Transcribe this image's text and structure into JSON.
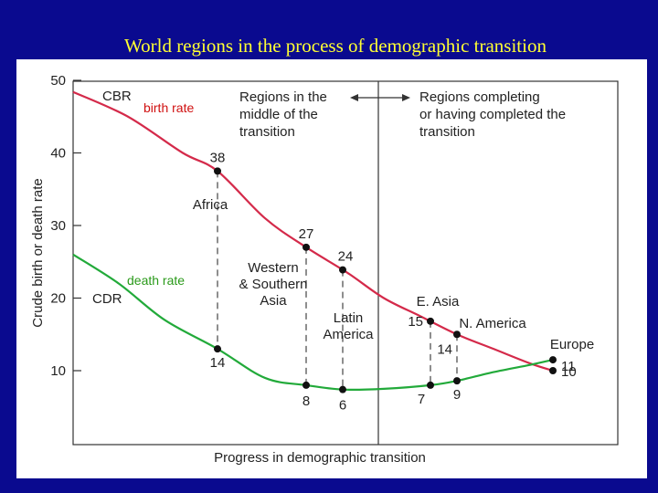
{
  "title": "World regions in the process of demographic transition",
  "chart_data": {
    "type": "line",
    "xlabel": "Progress in demographic transition",
    "ylabel": "Crude birth or death rate",
    "ylim": [
      0,
      50
    ],
    "yticks": [
      10,
      20,
      30,
      40,
      50
    ],
    "grid": false,
    "series": [
      {
        "name": "CBR",
        "color": "#d42a4a",
        "points": [
          [
            0,
            48.4
          ],
          [
            60,
            45
          ],
          [
            120,
            40
          ],
          [
            158,
            37.5
          ],
          [
            210,
            31
          ],
          [
            255,
            27
          ],
          [
            300,
            23.5
          ],
          [
            340,
            20
          ],
          [
            380,
            17.5
          ],
          [
            420,
            15
          ],
          [
            460,
            13
          ],
          [
            500,
            11
          ],
          [
            525,
            10
          ]
        ]
      },
      {
        "name": "CDR",
        "color": "#22aa3a",
        "points": [
          [
            0,
            26
          ],
          [
            50,
            22
          ],
          [
            100,
            17
          ],
          [
            158,
            13
          ],
          [
            210,
            9
          ],
          [
            255,
            8
          ],
          [
            295,
            7.4
          ],
          [
            340,
            7.5
          ],
          [
            391,
            8
          ],
          [
            420,
            8.6
          ],
          [
            460,
            9.8
          ],
          [
            500,
            10.8
          ],
          [
            525,
            11.5
          ]
        ]
      }
    ],
    "overlay_labels": {
      "birth": "birth rate",
      "death": "death rate"
    },
    "regions": [
      {
        "name": "Africa",
        "x": 158,
        "birth": 38,
        "death": 14
      },
      {
        "name": "Western & Southern Asia",
        "x": 255,
        "birth": 27,
        "death": 8
      },
      {
        "name": "Latin America",
        "x": 295,
        "birth": 24,
        "death": 6
      },
      {
        "name": "E. Asia",
        "x": 391,
        "birth": 15,
        "death": 7
      },
      {
        "name": "N. America",
        "x": 420,
        "birth": 14,
        "death": 9
      },
      {
        "name": "Europe",
        "x": 525,
        "birth": 10,
        "death": 11
      }
    ],
    "divider_x": 334,
    "phase_labels": {
      "middle": [
        "Regions in the",
        "middle of the",
        "transition"
      ],
      "completed": [
        "Regions completing",
        "or having completed the",
        "transition"
      ]
    },
    "annotations": {
      "Africa": [
        "Africa"
      ],
      "Western & Southern Asia": [
        "Western",
        "& Southern",
        "Asia"
      ],
      "Latin America": [
        "Latin",
        "America"
      ],
      "E. Asia": [
        "E. Asia"
      ],
      "N. America": [
        "N. America"
      ],
      "Europe": [
        "Europe"
      ]
    }
  }
}
